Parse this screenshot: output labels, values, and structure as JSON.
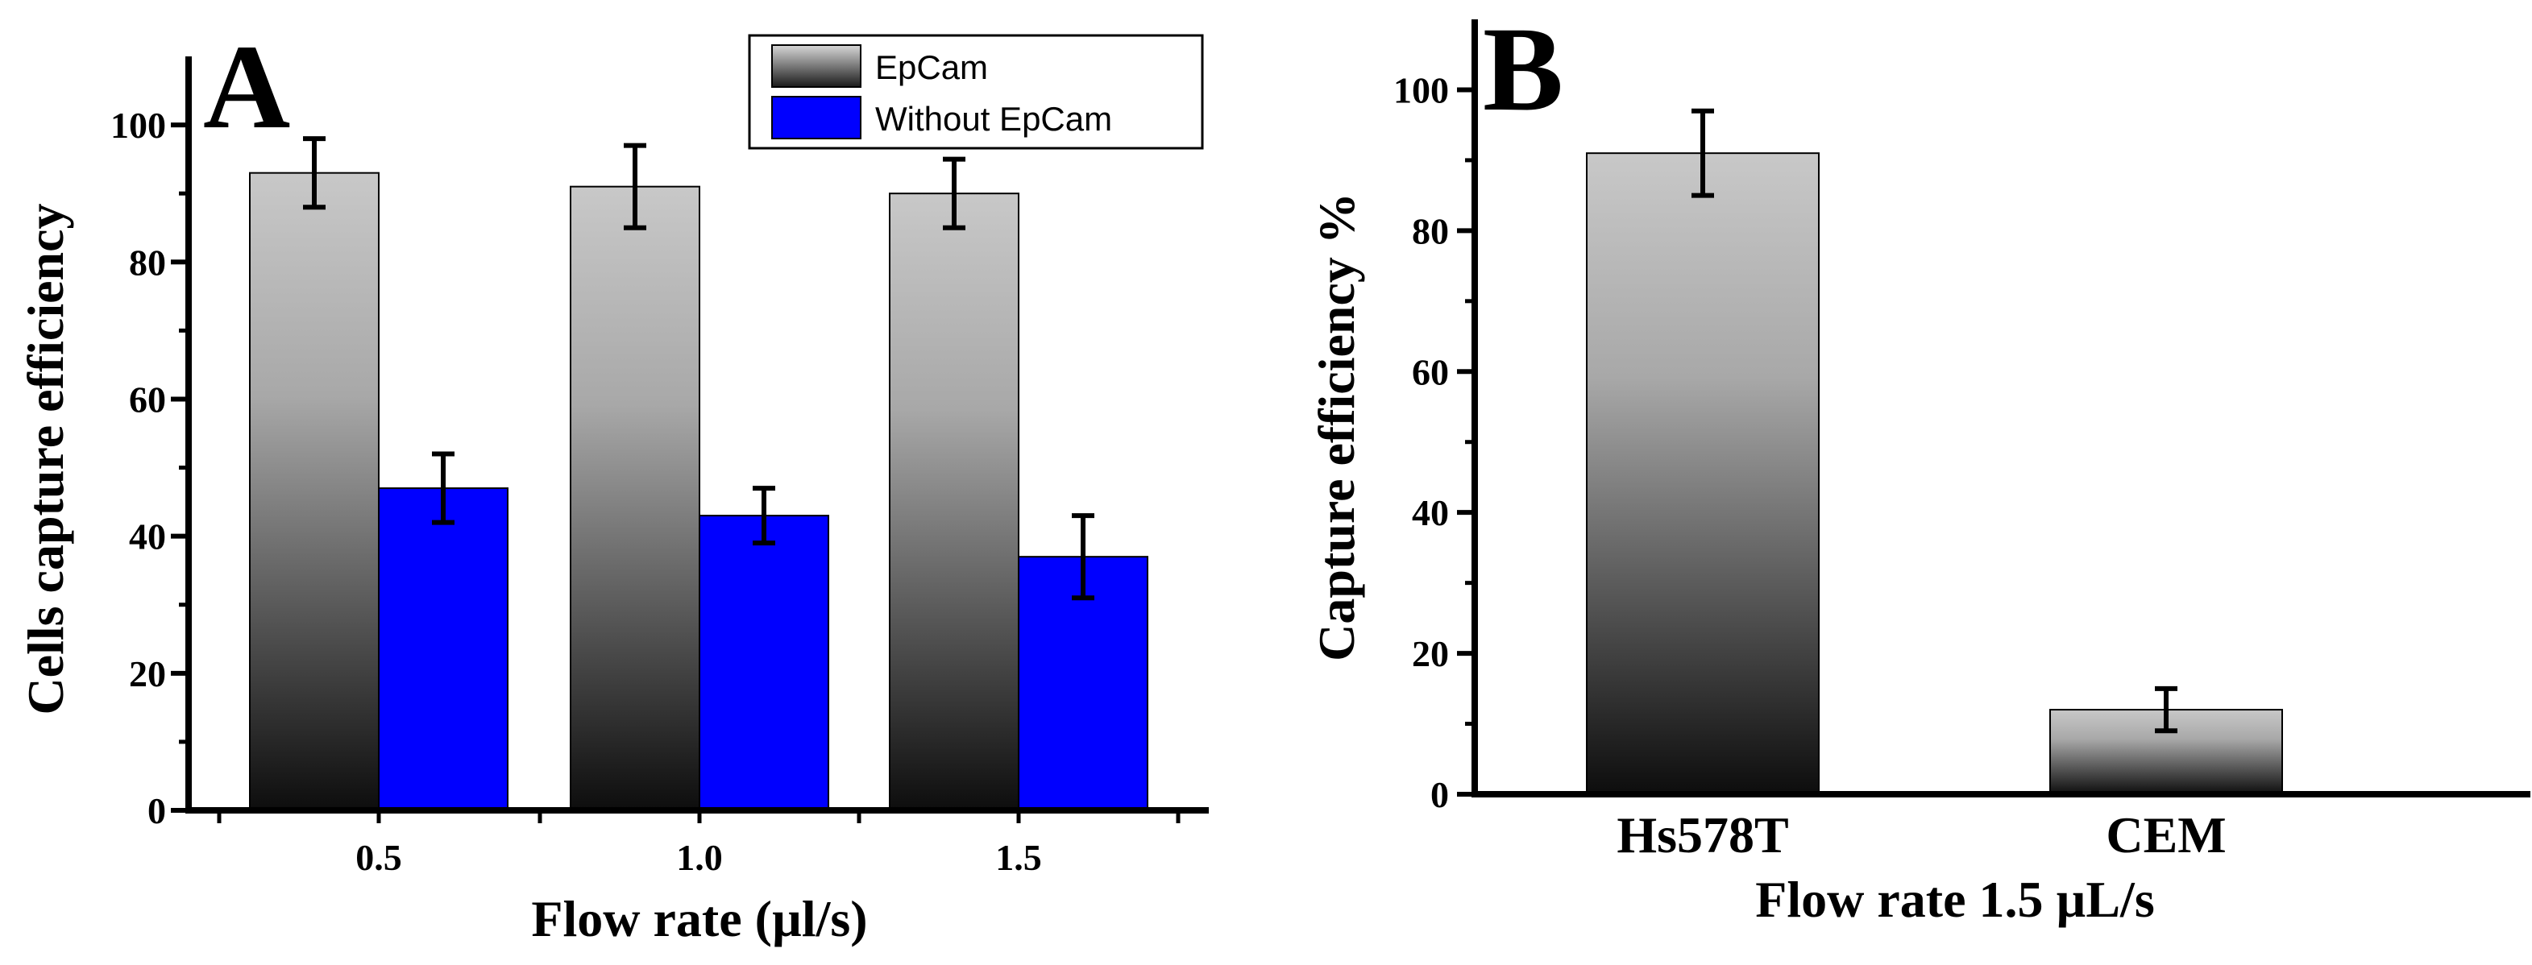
{
  "colors": {
    "axis": "#000000",
    "epcam_light": "#c6c6c6",
    "epcam_dark": "#111111",
    "without_epcam": "#0000ff"
  },
  "chart_data": [
    {
      "type": "bar",
      "panel_label": "A",
      "title": "",
      "xlabel": "Flow rate (µl/s)",
      "ylabel": "Cells capture efficiency",
      "categories": [
        "0.5",
        "1.0",
        "1.5"
      ],
      "series": [
        {
          "name": "EpCam",
          "values": [
            93,
            91,
            90
          ],
          "errors": [
            5,
            6,
            5
          ],
          "fill": "gradient-gray"
        },
        {
          "name": "Without EpCam",
          "values": [
            47,
            43,
            37
          ],
          "errors": [
            5,
            4,
            6
          ],
          "fill": "#0000ff"
        }
      ],
      "ylim": [
        0,
        110
      ],
      "yticks": [
        0,
        20,
        40,
        60,
        80,
        100
      ],
      "ytick_labels": [
        "0",
        "20",
        "40",
        "60",
        "80",
        "100"
      ],
      "grid": false,
      "legend": {
        "position": "top-right",
        "entries": [
          "EpCam",
          "Without EpCam"
        ]
      }
    },
    {
      "type": "bar",
      "panel_label": "B",
      "title": "",
      "xlabel": "Flow rate 1.5 µL/s",
      "ylabel": "Capture efficiency %",
      "categories": [
        "Hs578T",
        "CEM"
      ],
      "series": [
        {
          "name": "Capture efficiency",
          "values": [
            91,
            12
          ],
          "errors": [
            6,
            3
          ],
          "fill": "gradient-gray"
        }
      ],
      "ylim": [
        0,
        110
      ],
      "yticks": [
        0,
        20,
        40,
        60,
        80,
        100
      ],
      "ytick_labels": [
        "0",
        "20",
        "40",
        "60",
        "80",
        "100"
      ],
      "grid": false
    }
  ]
}
